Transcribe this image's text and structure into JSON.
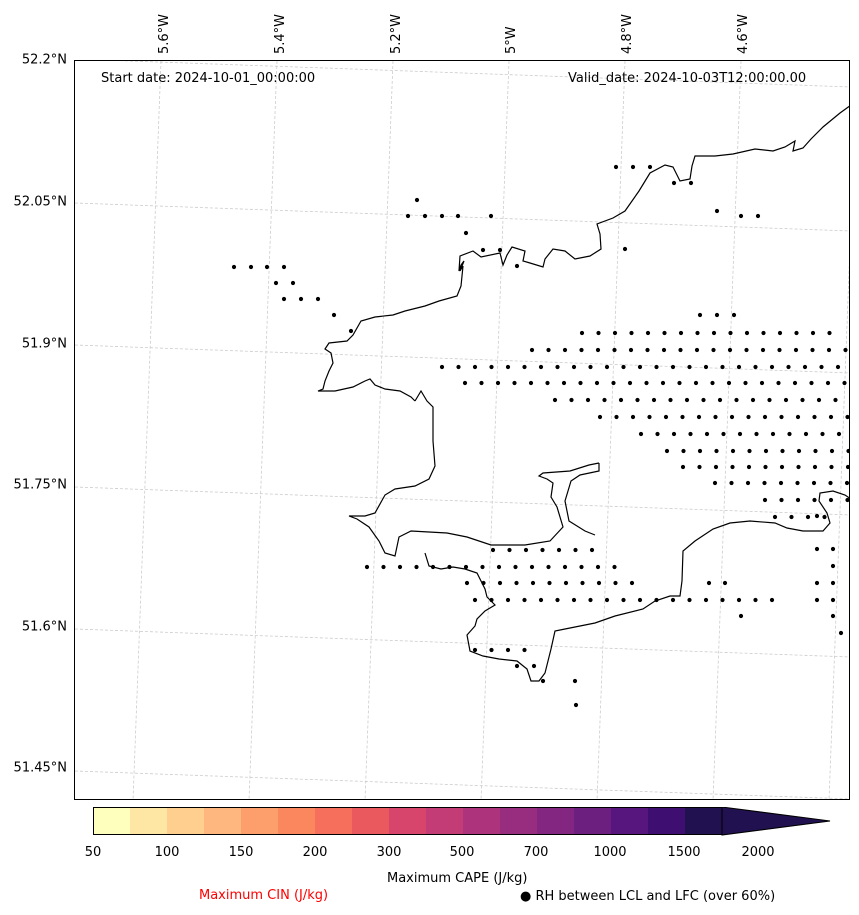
{
  "header": {
    "start_date": "Start date: 2024-10-01_00:00:00",
    "valid_date": "Valid_date: 2024-10-03T12:00:00.00"
  },
  "axes": {
    "lon_labels": [
      "5.6°W",
      "5.4°W",
      "5.2°W",
      "5°W",
      "4.8°W",
      "4.6°W"
    ],
    "lat_labels": [
      "52.2°N",
      "52.05°N",
      "51.9°N",
      "51.75°N",
      "51.6°N",
      "51.45°N"
    ]
  },
  "colorbar": {
    "title": "Maximum CAPE (J/kg)",
    "tick_labels": [
      "50",
      "100",
      "150",
      "200",
      "300",
      "500",
      "700",
      "1000",
      "1500",
      "2000"
    ],
    "colors": [
      "#fefebd",
      "#fee7a4",
      "#fecf8f",
      "#feb77e",
      "#fd9f6c",
      "#fa875e",
      "#f56f5c",
      "#e9595e",
      "#d8456c",
      "#c43c75",
      "#ad347c",
      "#982d80",
      "#832681",
      "#6d1f80",
      "#57157e",
      "#3e0f71",
      "#221150"
    ]
  },
  "legend": {
    "cin_label": "Maximum CIN (J/kg)",
    "cin_color": "#ff0000",
    "rh_label": "● RH between LCL and LFC (over 60%)"
  },
  "map": {
    "coastline_color": "#000000",
    "gridline_color": "#cccccc",
    "marker_color": "#000000"
  }
}
